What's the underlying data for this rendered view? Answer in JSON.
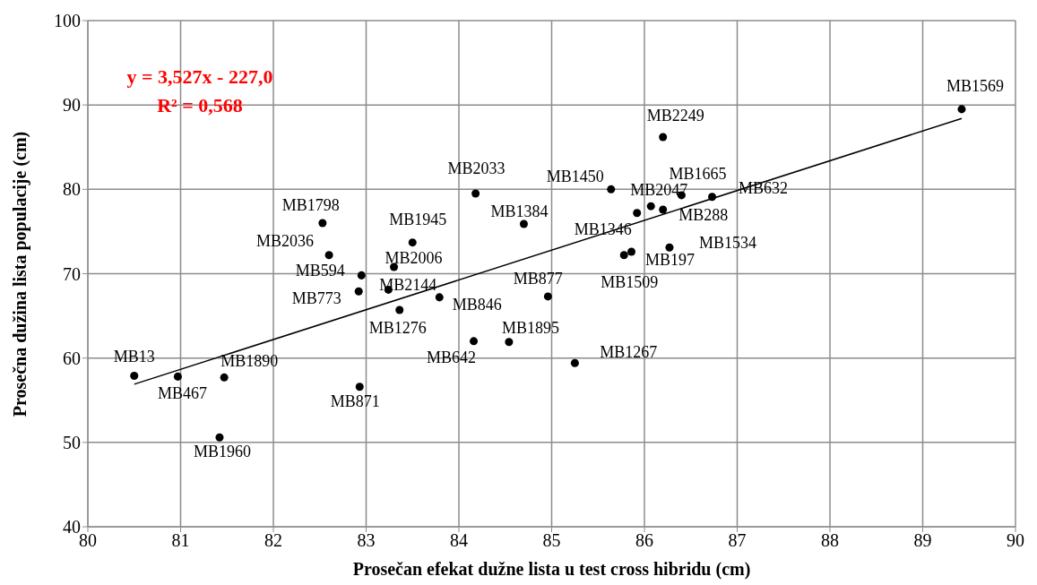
{
  "chart_data": {
    "type": "scatter",
    "xlabel": "Prosečan efekat dužne lista u test cross hibridu (cm)",
    "ylabel": "Prosečna dužina lista populacije (cm)",
    "xlim": [
      80,
      90
    ],
    "xticks": [
      80,
      81,
      82,
      83,
      84,
      85,
      86,
      87,
      88,
      89,
      90
    ],
    "ylim": [
      40,
      100
    ],
    "yticks": [
      40,
      50,
      60,
      70,
      80,
      90,
      100
    ],
    "grid": true,
    "marker": "circle",
    "series": [
      {
        "color": "#000000",
        "x": [
          80.5,
          80.97,
          81.47,
          81.42,
          82.93,
          82.53,
          82.6,
          82.95,
          82.92,
          83.24,
          83.3,
          83.5,
          83.36,
          83.79,
          84.18,
          84.16,
          84.54,
          84.7,
          84.96,
          85.25,
          85.64,
          85.92,
          86.07,
          86.2,
          86.4,
          86.73,
          86.2,
          85.78,
          85.86,
          86.27,
          89.42
        ],
        "values": [
          57.9,
          57.8,
          57.7,
          50.6,
          56.6,
          76.0,
          72.2,
          69.8,
          67.9,
          68.1,
          70.8,
          73.7,
          65.7,
          67.2,
          79.5,
          62.0,
          61.9,
          75.9,
          67.3,
          59.4,
          80.0,
          77.2,
          78.0,
          77.6,
          79.3,
          79.1,
          86.2,
          72.2,
          72.6,
          73.1,
          89.5
        ]
      },
      {
        "type": "line",
        "marker": "none",
        "color": "#000000",
        "x": [
          80.5,
          89.42
        ],
        "values": [
          56.9,
          88.4
        ]
      }
    ],
    "annotations": [
      "y = 3,527x - 227,0",
      "R² = 0,568",
      {
        "text": "MB13",
        "x": 80.5,
        "y": 57.9
      },
      {
        "text": "MB467",
        "x": 80.97,
        "y": 57.8
      },
      {
        "text": "MB1890",
        "x": 81.47,
        "y": 57.7
      },
      {
        "text": "MB1960",
        "x": 81.42,
        "y": 50.6
      },
      {
        "text": "MB871",
        "x": 82.93,
        "y": 56.6
      },
      {
        "text": "MB1798",
        "x": 82.53,
        "y": 76.0
      },
      {
        "text": "MB2036",
        "x": 82.6,
        "y": 72.2
      },
      {
        "text": "MB594",
        "x": 82.95,
        "y": 69.8
      },
      {
        "text": "MB773",
        "x": 82.92,
        "y": 67.9
      },
      {
        "text": "MB2144",
        "x": 83.24,
        "y": 68.1
      },
      {
        "text": "MB2006",
        "x": 83.3,
        "y": 70.8
      },
      {
        "text": "MB1945",
        "x": 83.5,
        "y": 73.7
      },
      {
        "text": "MB1276",
        "x": 83.36,
        "y": 65.7
      },
      {
        "text": "MB846",
        "x": 83.79,
        "y": 67.2
      },
      {
        "text": "MB2033",
        "x": 84.18,
        "y": 79.5
      },
      {
        "text": "MB642",
        "x": 84.16,
        "y": 62.0
      },
      {
        "text": "MB1895",
        "x": 84.54,
        "y": 61.9
      },
      {
        "text": "MB1384",
        "x": 84.7,
        "y": 75.9
      },
      {
        "text": "MB877",
        "x": 84.96,
        "y": 67.3
      },
      {
        "text": "MB1267",
        "x": 85.25,
        "y": 59.4
      },
      {
        "text": "MB1450",
        "x": 85.64,
        "y": 80.0
      },
      {
        "text": "MB1346",
        "x": 85.92,
        "y": 77.2
      },
      {
        "text": "MB2047",
        "x": 86.07,
        "y": 78.0
      },
      {
        "text": "MB288",
        "x": 86.2,
        "y": 77.6
      },
      {
        "text": "MB1665",
        "x": 86.4,
        "y": 79.3
      },
      {
        "text": "MB632",
        "x": 86.73,
        "y": 79.1
      },
      {
        "text": "MB2249",
        "x": 86.2,
        "y": 86.2
      },
      {
        "text": "MB1509",
        "x": 85.78,
        "y": 72.2
      },
      {
        "text": "MB197",
        "x": 85.86,
        "y": 72.6
      },
      {
        "text": "MB1534",
        "x": 86.27,
        "y": 73.1
      },
      {
        "text": "MB1569",
        "x": 89.42,
        "y": 89.5
      }
    ]
  }
}
